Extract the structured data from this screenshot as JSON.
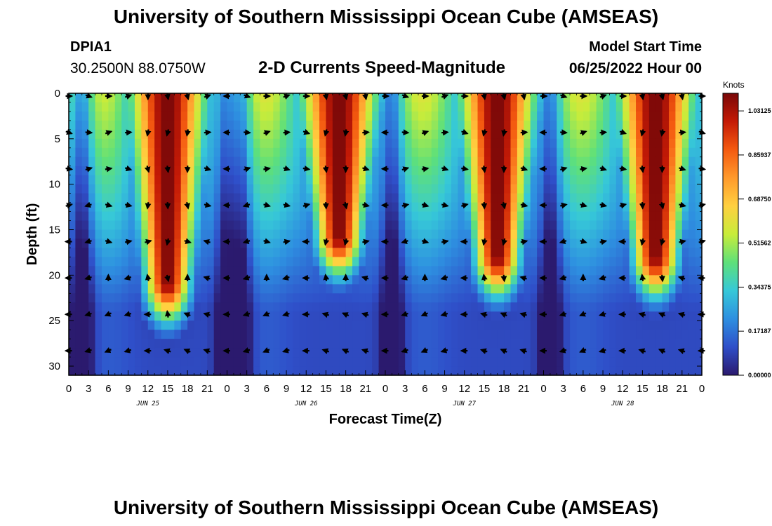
{
  "header": {
    "title": "University of Southern Mississippi Ocean Cube (AMSEAS)",
    "station": "DPIA1",
    "coords": "30.2500N  88.0750W",
    "subtitle": "2-D Currents Speed-Magnitude",
    "model_start_label": "Model Start Time",
    "model_start_value": "06/25/2022 Hour 00"
  },
  "footer": {
    "title": "University of Southern Mississippi Ocean Cube (AMSEAS)"
  },
  "chart_data": {
    "type": "heatmap",
    "title": "2-D Currents Speed-Magnitude",
    "xlabel": "Forecast Time(Z)",
    "ylabel": "Depth (ft)",
    "xlim": [
      0,
      96
    ],
    "ylim": [
      0,
      31
    ],
    "x_tick_labels": [
      "0",
      "3",
      "6",
      "9",
      "12",
      "15",
      "18",
      "21",
      "0",
      "3",
      "6",
      "9",
      "12",
      "15",
      "18",
      "21",
      "0",
      "3",
      "6",
      "9",
      "12",
      "15",
      "18",
      "21",
      "0",
      "3",
      "6",
      "9",
      "12",
      "15",
      "18",
      "21",
      "0"
    ],
    "y_ticks": [
      0,
      5,
      10,
      15,
      20,
      25,
      30
    ],
    "y_tick_labels": [
      "0",
      "5",
      "10",
      "15",
      "20",
      "25",
      "30"
    ],
    "day_labels": [
      {
        "text": "JUN 25",
        "hour": 12
      },
      {
        "text": "JUN 26",
        "hour": 36
      },
      {
        "text": "JUN 27",
        "hour": 60
      },
      {
        "text": "JUN 28",
        "hour": 84
      }
    ],
    "colorbar": {
      "unit": "Knots",
      "range": [
        0,
        1.1
      ],
      "ticks": [
        {
          "value": 1.03125,
          "label": "1.03125"
        },
        {
          "value": 0.859375,
          "label": "0.85937"
        },
        {
          "value": 0.6875,
          "label": "0.68750"
        },
        {
          "value": 0.515625,
          "label": "0.51562"
        },
        {
          "value": 0.34375,
          "label": "0.34375"
        },
        {
          "value": 0.171875,
          "label": "0.17187"
        },
        {
          "value": 0.0,
          "label": "0.00000"
        }
      ],
      "colors": [
        "#2b1a6e",
        "#2f4fc9",
        "#2e8fe0",
        "#36c8d8",
        "#5ee07a",
        "#c8ec3a",
        "#ffd040",
        "#ff9a2c",
        "#f45a10",
        "#c41a06",
        "#7a0808"
      ]
    },
    "peak_hours": [
      15,
      41,
      65,
      89
    ],
    "max_speed_knots": 1.1
  }
}
